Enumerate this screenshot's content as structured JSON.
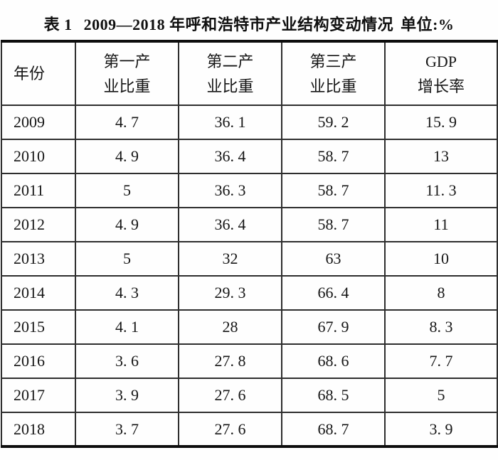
{
  "title": {
    "label": "表 1",
    "text": "2009—2018 年呼和浩特市产业结构变动情况",
    "unit": "单位:%"
  },
  "table": {
    "headers": [
      {
        "lines": [
          "年份",
          ""
        ]
      },
      {
        "lines": [
          "第一产",
          "业比重"
        ]
      },
      {
        "lines": [
          "第二产",
          "业比重"
        ]
      },
      {
        "lines": [
          "第三产",
          "业比重"
        ]
      },
      {
        "lines": [
          "GDP",
          "增长率"
        ]
      }
    ],
    "rows": [
      {
        "year": "2009",
        "values": [
          "4. 7",
          "36. 1",
          "59. 2",
          "15. 9"
        ]
      },
      {
        "year": "2010",
        "values": [
          "4. 9",
          "36. 4",
          "58. 7",
          "13"
        ]
      },
      {
        "year": "2011",
        "values": [
          "5",
          "36. 3",
          "58. 7",
          "11. 3"
        ]
      },
      {
        "year": "2012",
        "values": [
          "4. 9",
          "36. 4",
          "58. 7",
          "11"
        ]
      },
      {
        "year": "2013",
        "values": [
          "5",
          "32",
          "63",
          "10"
        ]
      },
      {
        "year": "2014",
        "values": [
          "4. 3",
          "29. 3",
          "66. 4",
          "8"
        ]
      },
      {
        "year": "2015",
        "values": [
          "4. 1",
          "28",
          "67. 9",
          "8. 3"
        ]
      },
      {
        "year": "2016",
        "values": [
          "3. 6",
          "27. 8",
          "68. 6",
          "7. 7"
        ]
      },
      {
        "year": "2017",
        "values": [
          "3. 9",
          "27. 6",
          "68. 5",
          "5"
        ]
      },
      {
        "year": "2018",
        "values": [
          "3. 7",
          "27. 6",
          "68. 7",
          "3. 9"
        ]
      }
    ]
  },
  "colors": {
    "text": "#161616",
    "rule_heavy": "#0d0d0d",
    "rule_light": "#2e2e2e",
    "background": "#fefefe"
  }
}
